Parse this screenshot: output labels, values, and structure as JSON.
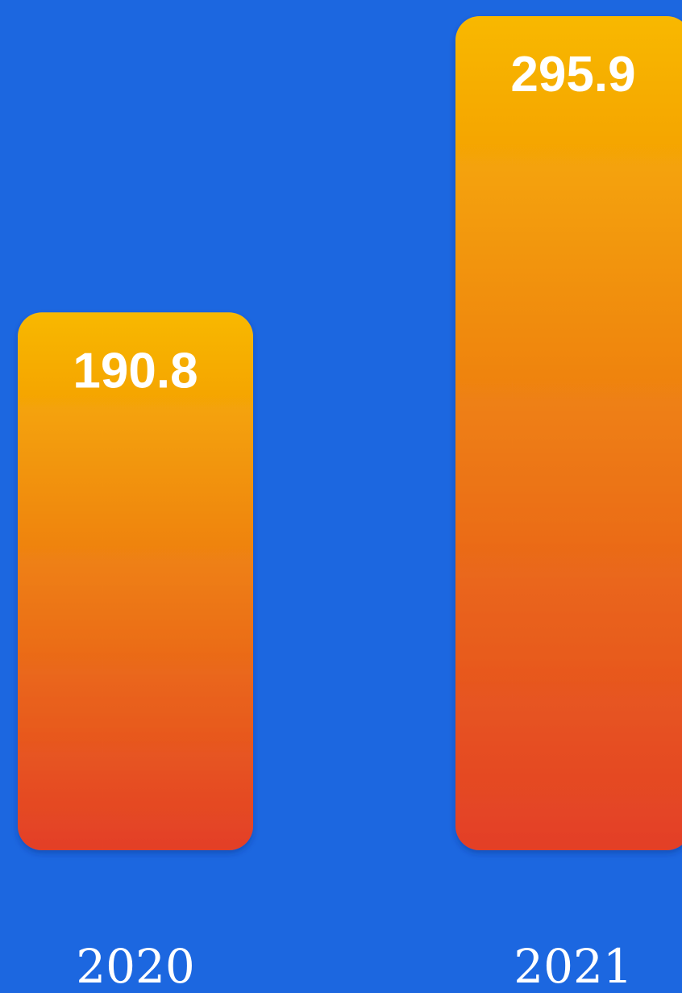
{
  "chart_data": {
    "type": "bar",
    "categories": [
      "2020",
      "2021"
    ],
    "values": [
      190.8,
      295.9
    ],
    "value_labels": [
      "190.8",
      "295.9"
    ],
    "title": "",
    "xlabel": "",
    "ylabel": "",
    "grid": false,
    "legend": "none",
    "colors": {
      "background": "#1c67e0",
      "bar_top": "#f8b800",
      "bar_bottom": "#e33f27",
      "text": "#ffffff"
    }
  }
}
